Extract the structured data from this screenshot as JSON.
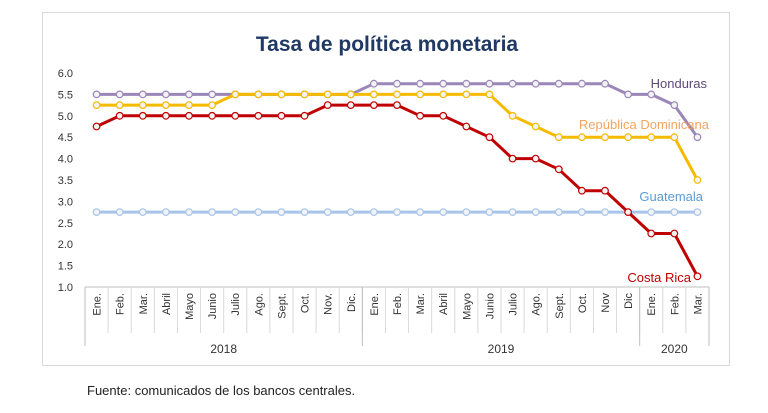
{
  "source_note": "Fuente: comunicados de los bancos centrales.",
  "chart_data": {
    "type": "line",
    "title": "Tasa de política monetaria",
    "xlabel": "",
    "ylabel": "",
    "ylim": [
      1.0,
      6.0
    ],
    "yticks": [
      "6.0",
      "5.5",
      "5.0",
      "4.5",
      "4.0",
      "3.5",
      "3.0",
      "2.5",
      "2.0",
      "1.5",
      "1.0"
    ],
    "grid": false,
    "legend": "inline-labels",
    "categories": [
      "Ene.",
      "Feb.",
      "Mar.",
      "Abril",
      "Mayo",
      "Junio",
      "Julio",
      "Ago.",
      "Sept.",
      "Oct.",
      "Nov.",
      "Dic.",
      "Ene.",
      "Feb.",
      "Mar.",
      "Abril",
      "Mayo",
      "Junio",
      "Julio",
      "Ago.",
      "Sept.",
      "Oct.",
      "Nov",
      "Dic",
      "Ene.",
      "Feb.",
      "Mar."
    ],
    "year_groups": [
      {
        "label": "2018",
        "count": 12
      },
      {
        "label": "2019",
        "count": 12
      },
      {
        "label": "2020",
        "count": 3
      }
    ],
    "series": [
      {
        "name": "Honduras",
        "color": "#9b86b8",
        "values": [
          5.5,
          5.5,
          5.5,
          5.5,
          5.5,
          5.5,
          5.5,
          5.5,
          5.5,
          5.5,
          5.5,
          5.5,
          5.75,
          5.75,
          5.75,
          5.75,
          5.75,
          5.75,
          5.75,
          5.75,
          5.75,
          5.75,
          5.75,
          5.5,
          5.5,
          5.25,
          4.5
        ]
      },
      {
        "name": "República Dominicana",
        "color": "#f5bb00",
        "values": [
          5.25,
          5.25,
          5.25,
          5.25,
          5.25,
          5.25,
          5.5,
          5.5,
          5.5,
          5.5,
          5.5,
          5.5,
          5.5,
          5.5,
          5.5,
          5.5,
          5.5,
          5.5,
          5.0,
          4.75,
          4.5,
          4.5,
          4.5,
          4.5,
          4.5,
          4.5,
          3.5
        ]
      },
      {
        "name": "Costa Rica",
        "color": "#c00000",
        "values": [
          4.75,
          5.0,
          5.0,
          5.0,
          5.0,
          5.0,
          5.0,
          5.0,
          5.0,
          5.0,
          5.25,
          5.25,
          5.25,
          5.25,
          5.0,
          5.0,
          4.75,
          4.5,
          4.0,
          4.0,
          3.75,
          3.25,
          3.25,
          2.75,
          2.25,
          2.25,
          1.25
        ]
      },
      {
        "name": "Guatemala",
        "color": "#a9c4eb",
        "values": [
          2.75,
          2.75,
          2.75,
          2.75,
          2.75,
          2.75,
          2.75,
          2.75,
          2.75,
          2.75,
          2.75,
          2.75,
          2.75,
          2.75,
          2.75,
          2.75,
          2.75,
          2.75,
          2.75,
          2.75,
          2.75,
          2.75,
          2.75,
          2.75,
          2.75,
          2.75,
          2.75
        ]
      }
    ],
    "label_colors": {
      "Honduras": "#5f497a",
      "República Dominicana": "#f4a460",
      "Costa Rica": "#c00000",
      "Guatemala": "#5b9bd5"
    },
    "title_color": "#1f3864"
  }
}
